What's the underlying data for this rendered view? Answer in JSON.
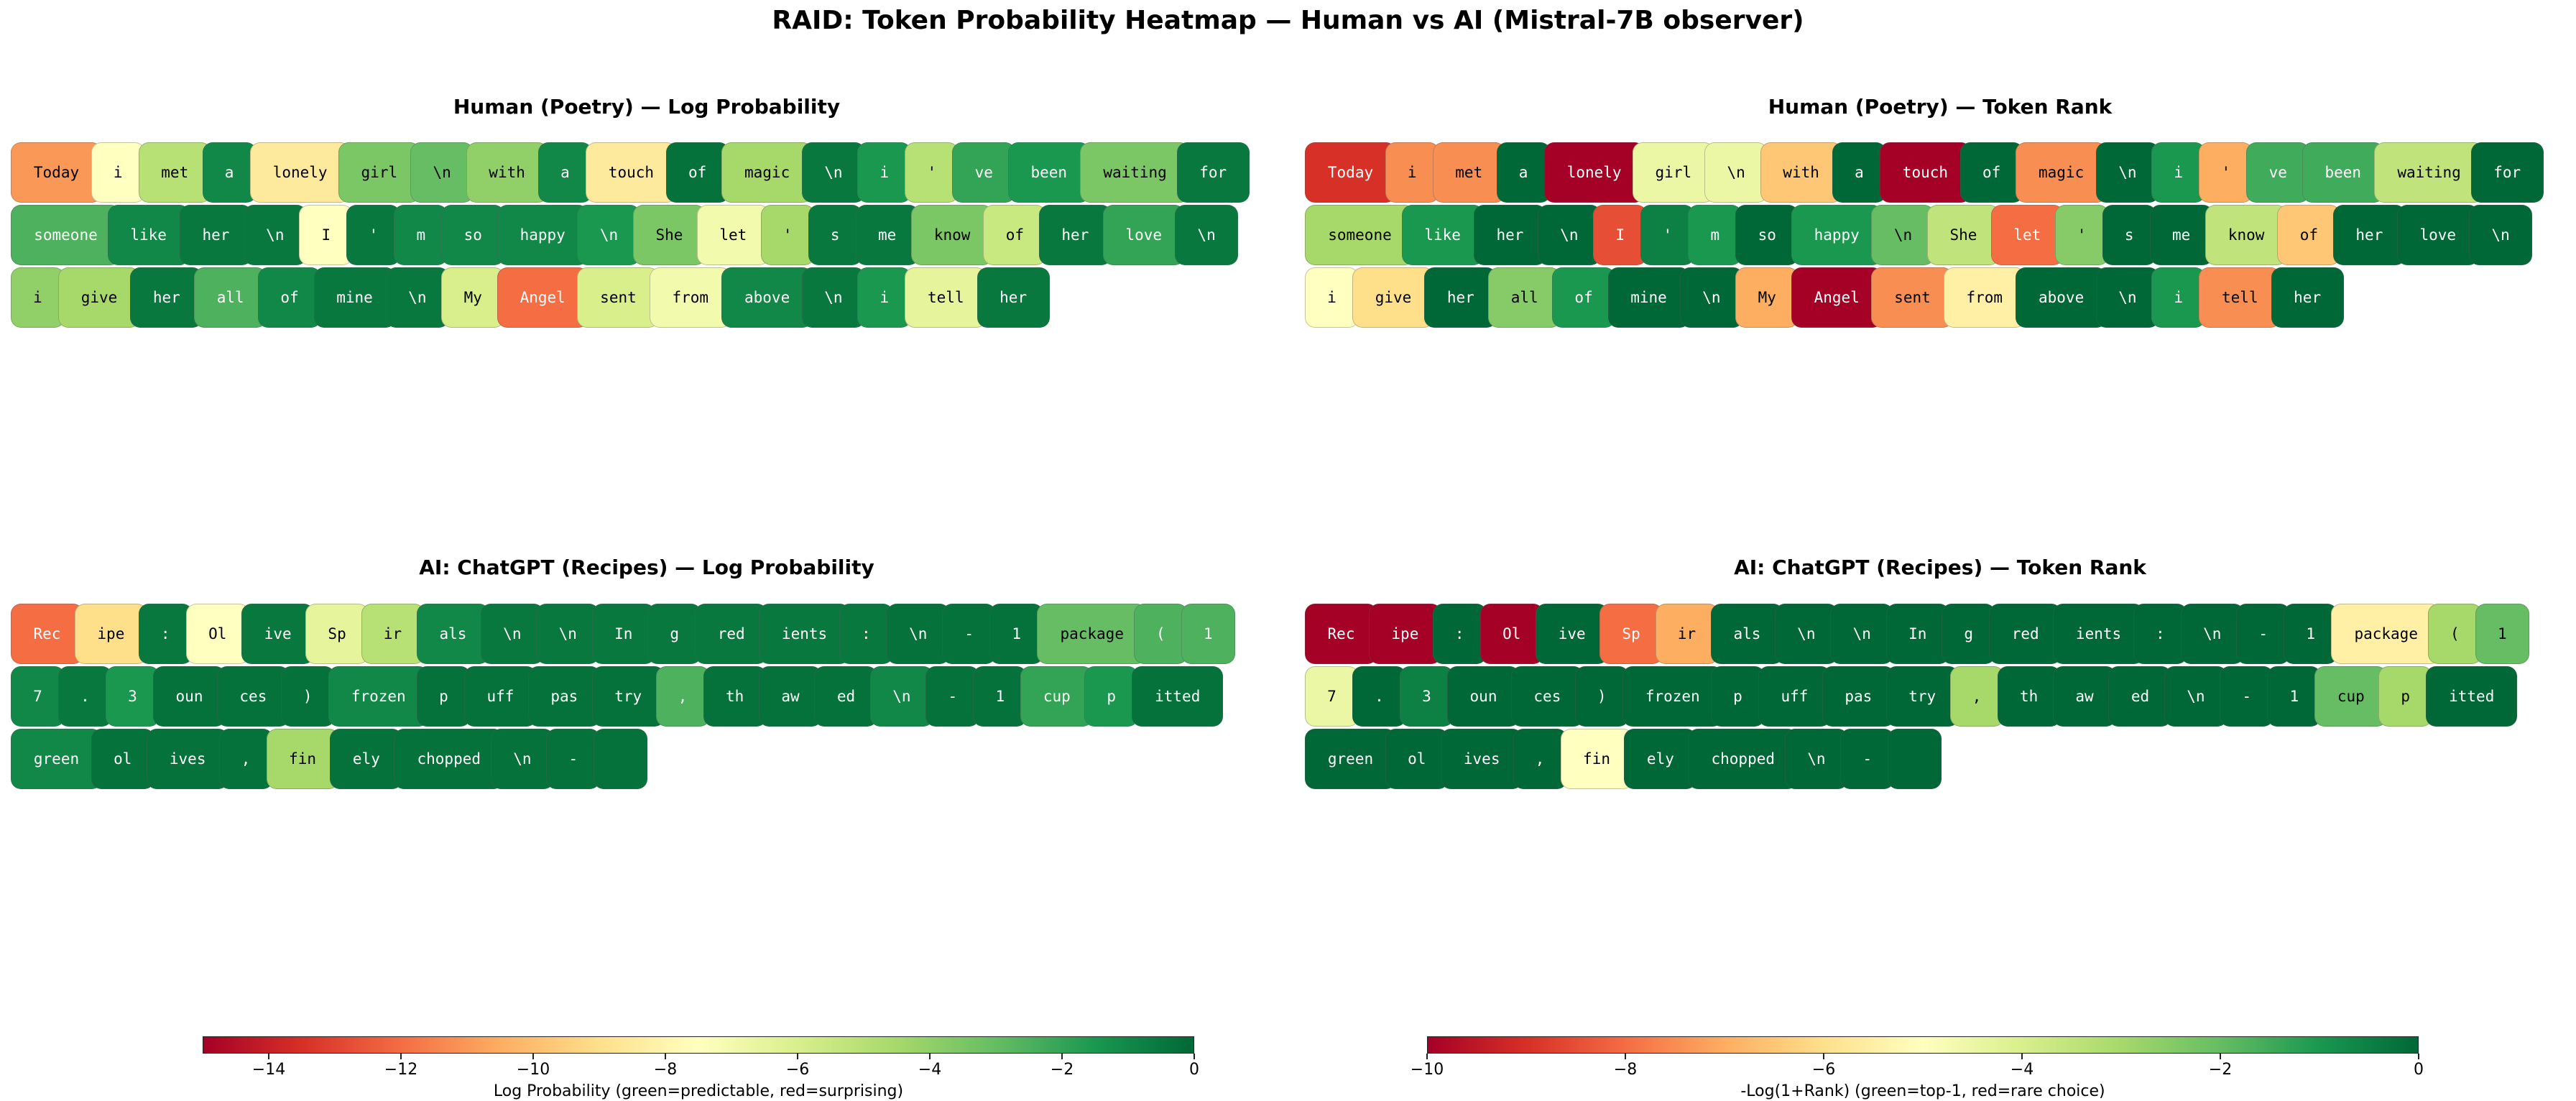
{
  "title": "RAID: Token Probability Heatmap — Human vs AI (Mistral-7B observer)",
  "chart_data": [
    {
      "type": "heatmap",
      "title": "Human (Poetry) — Log Probability",
      "metric": "log_probability",
      "colormap": "RdYlGn",
      "vmin": -15,
      "vmax": 0,
      "tokens": [
        "Today",
        "i",
        "met",
        "a",
        "lonely",
        "girl",
        "\\n",
        "with",
        "a",
        "touch",
        "of",
        "magic",
        "\\n",
        "i",
        "'",
        "ve",
        "been",
        "waiting",
        "for",
        "someone",
        "like",
        "her",
        "\\n",
        "I",
        "'",
        "m",
        "so",
        "happy",
        "\\n",
        "She",
        "let",
        "'",
        "s",
        "me",
        "know",
        "of",
        "her",
        "love",
        "\\n",
        "i",
        "give",
        "her",
        "all",
        "of",
        "mine",
        "\\n",
        "My",
        "Angel",
        "sent",
        "from",
        "above",
        "\\n",
        "i",
        "tell",
        "her"
      ],
      "values": [
        -11,
        -7.5,
        -5,
        -1,
        -8.5,
        -3.5,
        -3,
        -4,
        -1,
        -8.5,
        -0.3,
        -4.5,
        -0.5,
        -1.5,
        -5,
        -2,
        -1.5,
        -3.5,
        -0.5,
        -2.5,
        -1,
        -0.5,
        -0.5,
        -7.5,
        -0.5,
        -1,
        -1,
        -1,
        -1.5,
        -3.5,
        -7,
        -4.5,
        -0.5,
        -0.5,
        -3.5,
        -5.5,
        -0.5,
        -2,
        -0.5,
        -4,
        -4.5,
        -0.5,
        -2.5,
        -1,
        -0.5,
        -0.5,
        -6,
        -12,
        -6,
        -7,
        -1,
        -0.5,
        -1.5,
        -6.5,
        -0.5
      ]
    },
    {
      "type": "heatmap",
      "title": "Human (Poetry) — Token Rank",
      "metric": "-log(1+rank)",
      "colormap": "RdYlGn",
      "vmin": -10,
      "vmax": 0,
      "tokens": [
        "Today",
        "i",
        "met",
        "a",
        "lonely",
        "girl",
        "\\n",
        "with",
        "a",
        "touch",
        "of",
        "magic",
        "\\n",
        "i",
        "'",
        "ve",
        "been",
        "waiting",
        "for",
        "someone",
        "like",
        "her",
        "\\n",
        "I",
        "'",
        "m",
        "so",
        "happy",
        "\\n",
        "She",
        "let",
        "'",
        "s",
        "me",
        "know",
        "of",
        "her",
        "love",
        "\\n",
        "i",
        "give",
        "her",
        "all",
        "of",
        "mine",
        "\\n",
        "My",
        "Angel",
        "sent",
        "from",
        "above",
        "\\n",
        "i",
        "tell",
        "her"
      ],
      "values": [
        -9,
        -7.5,
        -7.5,
        0,
        -10,
        -4.5,
        -4.5,
        -6.5,
        0,
        -10,
        0,
        -7.5,
        0,
        -1,
        -7,
        -1.5,
        -1.5,
        -3.5,
        0,
        -3,
        -1,
        0,
        0,
        -8.5,
        -0.5,
        -1,
        0,
        -1,
        -2,
        -3.5,
        -8,
        -2.5,
        0,
        0,
        -3.5,
        -6.5,
        0,
        0,
        0,
        -5,
        -6,
        0,
        -2.5,
        -1,
        0,
        0,
        -7,
        -10,
        -7.5,
        -5.5,
        0,
        0,
        -1,
        -7.5,
        0
      ]
    },
    {
      "type": "heatmap",
      "title": "AI: ChatGPT (Recipes) — Log Probability",
      "metric": "log_probability",
      "colormap": "RdYlGn",
      "vmin": -15,
      "vmax": 0,
      "tokens": [
        "Rec",
        "ipe",
        ":",
        "Ol",
        "ive",
        "Sp",
        "ir",
        "als",
        "\\n",
        "\\n",
        "In",
        "g",
        "red",
        "ients",
        ":",
        "\\n",
        "-",
        "1",
        "package",
        "(",
        "1",
        "7",
        ".",
        "3",
        "oun",
        "ces",
        ")",
        "frozen",
        "p",
        "uff",
        "pas",
        "try",
        ",",
        "th",
        "aw",
        "ed",
        "\\n",
        "-",
        "1",
        "cup",
        "p",
        "itted",
        "green",
        "ol",
        "ives",
        ",",
        "fin",
        "ely",
        "chopped",
        "\\n",
        "-",
        " "
      ],
      "values": [
        -12,
        -9,
        -0.5,
        -7.5,
        -0.5,
        -6.5,
        -5,
        -1,
        -0.5,
        -0.5,
        -0.5,
        -0.5,
        -0.5,
        -0.5,
        -0.5,
        -0.3,
        -0.3,
        -0.3,
        -3,
        -2.5,
        -2.5,
        -1,
        -0.5,
        -1.5,
        -0.3,
        -0.3,
        -0.3,
        -1,
        -0.3,
        -0.3,
        -0.3,
        -0.3,
        -2.5,
        -0.3,
        -0.3,
        -0.3,
        -1,
        -0.3,
        -0.3,
        -2,
        -1.5,
        -0.3,
        -1,
        -0.3,
        -0.3,
        -0.3,
        -4.5,
        -0.3,
        -0.3,
        -0.3,
        -0.3,
        -0.3
      ]
    },
    {
      "type": "heatmap",
      "title": "AI: ChatGPT (Recipes) — Token Rank",
      "metric": "-log(1+rank)",
      "colormap": "RdYlGn",
      "vmin": -10,
      "vmax": 0,
      "tokens": [
        "Rec",
        "ipe",
        ":",
        "Ol",
        "ive",
        "Sp",
        "ir",
        "als",
        "\\n",
        "\\n",
        "In",
        "g",
        "red",
        "ients",
        ":",
        "\\n",
        "-",
        "1",
        "package",
        "(",
        "1",
        "7",
        ".",
        "3",
        "oun",
        "ces",
        ")",
        "frozen",
        "p",
        "uff",
        "pas",
        "try",
        ",",
        "th",
        "aw",
        "ed",
        "\\n",
        "-",
        "1",
        "cup",
        "p",
        "itted",
        "green",
        "ol",
        "ives",
        ",",
        "fin",
        "ely",
        "chopped",
        "\\n",
        "-",
        " "
      ],
      "values": [
        -10,
        -10,
        0,
        -10,
        0,
        -8,
        -7,
        0,
        0,
        0,
        0,
        0,
        0,
        0,
        0,
        0,
        0,
        0,
        -5.5,
        -3,
        -2,
        -4.5,
        0,
        -0.5,
        0,
        0,
        0,
        0,
        0,
        0,
        0,
        0,
        -3,
        0,
        0,
        0,
        0,
        0,
        0,
        -2,
        -3,
        0,
        0,
        0,
        0,
        0,
        -5,
        0,
        0,
        0,
        0,
        0
      ]
    }
  ],
  "colorbars": [
    {
      "label": "Log Probability (green=predictable, red=surprising)",
      "vmin": -15,
      "vmax": 0,
      "ticks": [
        "−14",
        "−12",
        "−10",
        "−8",
        "−6",
        "−4",
        "−2",
        "0"
      ],
      "tick_values": [
        -14,
        -12,
        -10,
        -8,
        -6,
        -4,
        -2,
        0
      ]
    },
    {
      "label": "-Log(1+Rank) (green=top-1, red=rare choice)",
      "vmin": -10,
      "vmax": 0,
      "ticks": [
        "−10",
        "−8",
        "−6",
        "−4",
        "−2",
        "0"
      ],
      "tick_values": [
        -10,
        -8,
        -6,
        -4,
        -2,
        0
      ]
    }
  ]
}
